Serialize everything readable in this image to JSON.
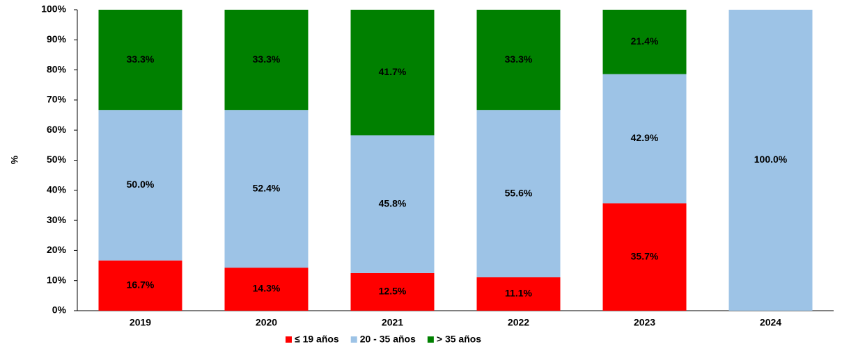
{
  "chart_data": {
    "type": "stacked_bar",
    "ylabel": "%",
    "categories": [
      "2019",
      "2020",
      "2021",
      "2022",
      "2023",
      "2024"
    ],
    "series": [
      {
        "name": "≤ 19 años",
        "color": "#ff0000",
        "values": [
          16.7,
          14.3,
          12.5,
          11.1,
          35.7,
          null
        ],
        "value_labels": [
          "16.7%",
          "14.3%",
          "12.5%",
          "11.1%",
          "35.7%",
          null
        ]
      },
      {
        "name": "20 - 35 años",
        "color": "#9dc3e6",
        "values": [
          50.0,
          52.4,
          45.8,
          55.6,
          42.9,
          100.0
        ],
        "value_labels": [
          "50.0%",
          "52.4%",
          "45.8%",
          "55.6%",
          "42.9%",
          "100.0%"
        ]
      },
      {
        "name": "> 35 años",
        "color": "#008000",
        "values": [
          33.3,
          33.3,
          41.7,
          33.3,
          21.4,
          null
        ],
        "value_labels": [
          "33.3%",
          "33.3%",
          "41.7%",
          "33.3%",
          "21.4%",
          null
        ]
      }
    ],
    "ylim": [
      0,
      100
    ],
    "yticks": [
      {
        "value": 0,
        "label": "0%"
      },
      {
        "value": 10,
        "label": "10%"
      },
      {
        "value": 20,
        "label": "20%"
      },
      {
        "value": 30,
        "label": "30%"
      },
      {
        "value": 40,
        "label": "40%"
      },
      {
        "value": 50,
        "label": "50%"
      },
      {
        "value": 60,
        "label": "60%"
      },
      {
        "value": 70,
        "label": "70%"
      },
      {
        "value": 80,
        "label": "80%"
      },
      {
        "value": 90,
        "label": "90%"
      },
      {
        "value": 100,
        "label": "100%"
      }
    ],
    "legend": "bottom"
  }
}
